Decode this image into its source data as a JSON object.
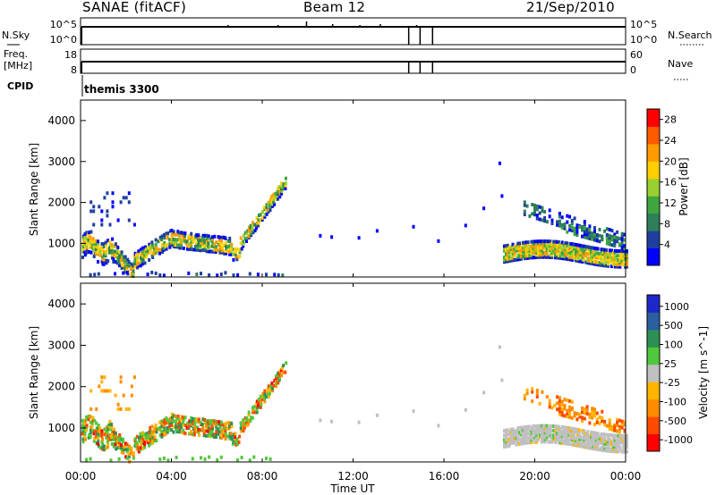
{
  "header": {
    "station": "SANAE (fitACF)",
    "beam": "Beam 12",
    "date": "21/Sep/2010"
  },
  "param_panel": {
    "nsky_label": "N.Sky",
    "nsky_ticks": [
      "10^5",
      "10^0"
    ],
    "nsearch_label": "N.Search",
    "nsearch_ticks": [
      "10^5",
      "10^0"
    ],
    "freq_label_1": "Freq.",
    "freq_label_2": "[MHz]",
    "freq_ticks": [
      "18",
      "8"
    ],
    "nave_label": "Nave",
    "nave_ticks": [
      "60",
      "0"
    ],
    "cpid_label": "CPID",
    "cpid_value": "themis 3300"
  },
  "colors": {
    "power": [
      "#0000ff",
      "#1f3fa0",
      "#2e7f5a",
      "#3fa63f",
      "#99d030",
      "#ffd000",
      "#ff9a00",
      "#ff5a00",
      "#ff0000"
    ],
    "velocity": [
      "#1e28c8",
      "#2a5fa0",
      "#2e8f55",
      "#50c83c",
      "#c0c0c0",
      "#ffb400",
      "#ff8c00",
      "#ff4a00",
      "#ff0000"
    ]
  },
  "chart_data": [
    {
      "type": "heatmap",
      "name": "power-panel",
      "ylabel": "Slant Range [km]",
      "ylim": [
        180,
        4500
      ],
      "xlim": [
        0,
        24
      ],
      "yticks": [
        "1000",
        "2000",
        "3000",
        "4000"
      ],
      "colorbar_label": "Power [dB]",
      "colorbar_ticks": [
        "4",
        "8",
        "12",
        "16",
        "20",
        "24",
        "28"
      ],
      "colorbar_range": [
        0,
        30
      ]
    },
    {
      "type": "heatmap",
      "name": "velocity-panel",
      "ylabel": "Slant Range [km]",
      "ylim": [
        180,
        4500
      ],
      "xlim": [
        0,
        24
      ],
      "yticks": [
        "1000",
        "2000",
        "3000",
        "4000"
      ],
      "colorbar_label": "Velocity [m s^-1]",
      "colorbar_ticks": [
        "1000",
        "500",
        "100",
        "25",
        "-25",
        "-100",
        "-500",
        "-1000"
      ]
    }
  ],
  "x_axis": {
    "ticks": [
      "00:00",
      "04:00",
      "08:00",
      "12:00",
      "16:00",
      "20:00",
      "00:00"
    ],
    "label": "Time UT"
  }
}
